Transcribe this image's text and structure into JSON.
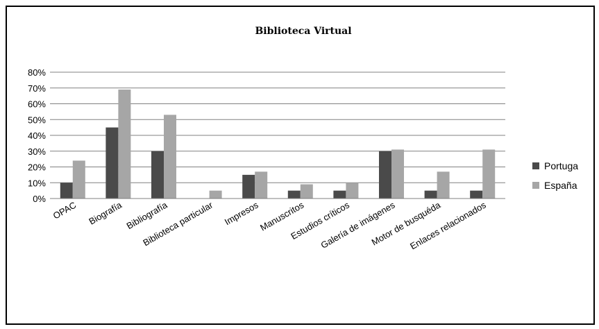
{
  "chart_data": {
    "type": "bar",
    "title": "Biblioteca Virtual",
    "xlabel": "",
    "ylabel": "",
    "ylim": [
      0,
      0.8
    ],
    "yticks": [
      "0%",
      "10%",
      "20%",
      "30%",
      "40%",
      "50%",
      "60%",
      "70%",
      "80%"
    ],
    "grid": true,
    "legend_position": "right",
    "categories": [
      "OPAC",
      "Biografía",
      "Bibliografía",
      "Biblioteca particular",
      "Impresos",
      "Manuscritos",
      "Estudios críticos",
      "Galería de imágenes",
      "Motor de busquéda",
      "Enlaces relacionados"
    ],
    "series": [
      {
        "name": "Portugal",
        "legend_text": "Portuga",
        "color": "#4a4a4a",
        "values": [
          0.1,
          0.45,
          0.3,
          0.0,
          0.15,
          0.05,
          0.05,
          0.3,
          0.05,
          0.05
        ]
      },
      {
        "name": "España",
        "legend_text": "España",
        "color": "#a6a6a6",
        "values": [
          0.24,
          0.69,
          0.53,
          0.05,
          0.17,
          0.09,
          0.1,
          0.31,
          0.17,
          0.31
        ]
      }
    ]
  }
}
